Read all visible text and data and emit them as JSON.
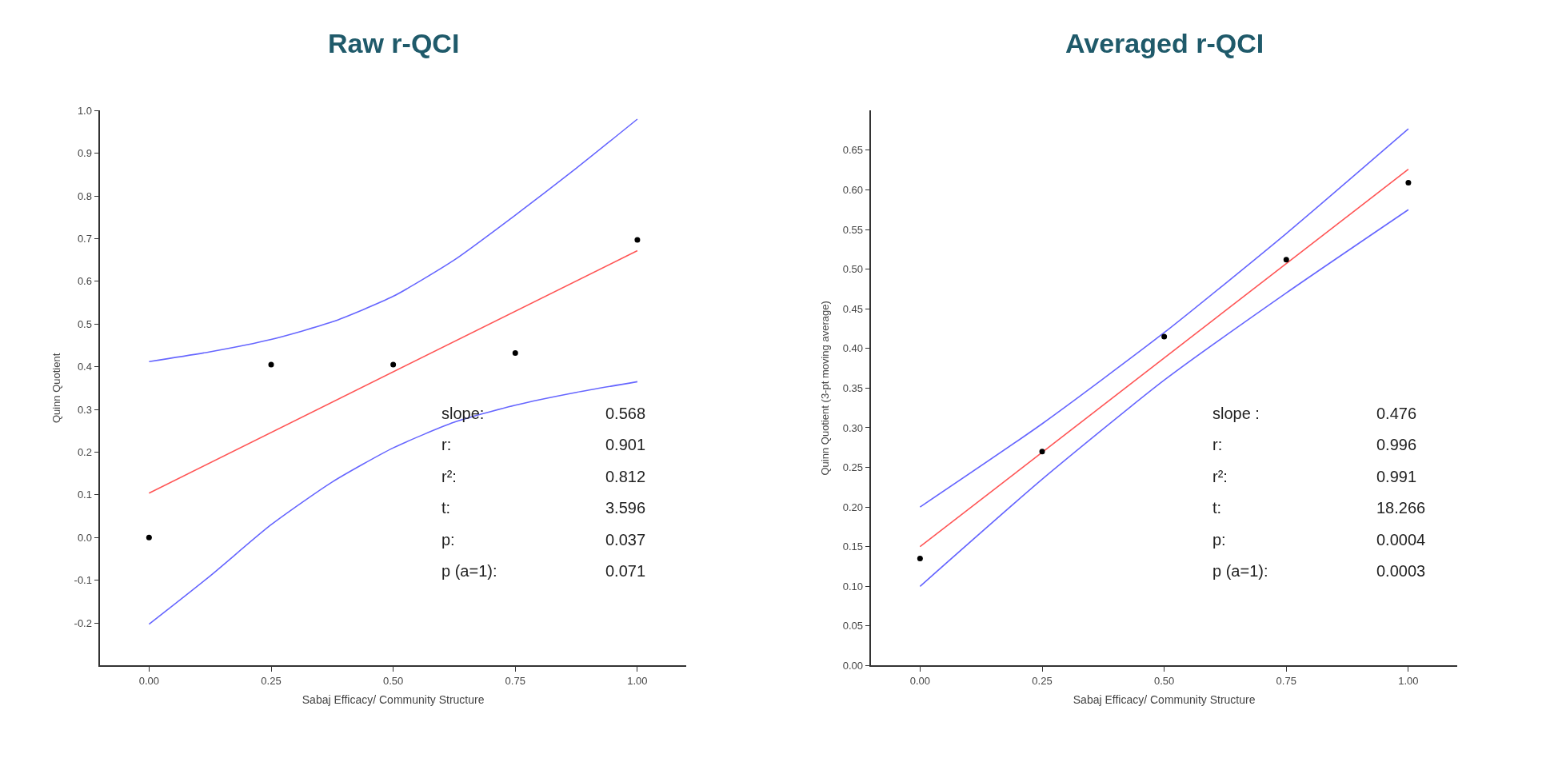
{
  "chart_data": [
    {
      "type": "scatter",
      "title": "Raw r-QCI",
      "xlabel": "Sabaj Efficacy/ Community Structure",
      "ylabel": "Quinn Quotient",
      "xlim": [
        -0.1,
        1.1
      ],
      "xticks": [
        {
          "value": 0,
          "label": "0.00"
        },
        {
          "value": 0.25,
          "label": "0.25"
        },
        {
          "value": 0.5,
          "label": "0.50"
        },
        {
          "value": 0.75,
          "label": "0.75"
        },
        {
          "value": 1,
          "label": "1.00"
        }
      ],
      "ylim": [
        -0.3,
        1.0
      ],
      "yticks": [
        {
          "value": -0.2,
          "label": "-0.2"
        },
        {
          "value": -0.1,
          "label": "-0.1"
        },
        {
          "value": 0,
          "label": "0.0"
        },
        0.1,
        0.2,
        0.3,
        0.4,
        0.5,
        0.6,
        0.7,
        0.8,
        0.9,
        {
          "value": 1,
          "label": "1.0"
        }
      ],
      "line_style": "solid",
      "series": [
        {
          "type": "line",
          "marker": "none",
          "color": "#6666ff",
          "x": [
            0,
            0.125,
            0.25,
            0.375,
            0.5,
            0.625,
            0.75,
            0.875,
            1
          ],
          "values": [
            0.412,
            0.435,
            0.464,
            0.505,
            0.565,
            0.65,
            0.755,
            0.865,
            0.98
          ]
        },
        {
          "type": "line",
          "marker": "none",
          "color": "#6666ff",
          "x": [
            0,
            0.125,
            0.25,
            0.375,
            0.5,
            0.625,
            0.75,
            0.875,
            1
          ],
          "values": [
            -0.203,
            -0.09,
            0.03,
            0.13,
            0.21,
            0.27,
            0.31,
            0.34,
            0.365
          ]
        },
        {
          "type": "line",
          "marker": "none",
          "color": "#ff5555",
          "x": [
            0,
            1
          ],
          "values": [
            0.104,
            0.672
          ]
        },
        {
          "marker": "circle",
          "color": "#000000",
          "x": [
            0,
            0.25,
            0.5,
            0.75,
            1
          ],
          "values": [
            0,
            0.405,
            0.405,
            0.432,
            0.697
          ]
        }
      ],
      "annotations": [
        "slope:",
        "0.568",
        "r:",
        "0.901",
        "r²:",
        "0.812",
        "t:",
        "3.596",
        "p:",
        "0.037",
        "p (a=1):",
        "0.071"
      ]
    },
    {
      "type": "scatter",
      "title": "Averaged r-QCI",
      "xlabel": "Sabaj Efficacy/ Community Structure",
      "ylabel": "Quinn Quotient (3-pt moving average)",
      "xlim": [
        -0.1,
        1.1
      ],
      "xticks": [
        {
          "value": 0,
          "label": "0.00"
        },
        {
          "value": 0.25,
          "label": "0.25"
        },
        {
          "value": 0.5,
          "label": "0.50"
        },
        {
          "value": 0.75,
          "label": "0.75"
        },
        {
          "value": 1,
          "label": "1.00"
        }
      ],
      "ylim": [
        0,
        0.7
      ],
      "yticks": [
        {
          "value": 0,
          "label": "0.00"
        },
        0.05,
        {
          "value": 0.1,
          "label": "0.10"
        },
        0.15,
        {
          "value": 0.2,
          "label": "0.20"
        },
        0.25,
        {
          "value": 0.3,
          "label": "0.30"
        },
        0.35,
        {
          "value": 0.4,
          "label": "0.40"
        },
        0.45,
        {
          "value": 0.5,
          "label": "0.50"
        },
        0.55,
        {
          "value": 0.6,
          "label": "0.60"
        },
        0.65
      ],
      "line_style": "solid",
      "series": [
        {
          "type": "line",
          "marker": "none",
          "color": "#6666ff",
          "x": [
            0,
            0.25,
            0.5,
            0.75,
            1
          ],
          "values": [
            0.2,
            0.305,
            0.42,
            0.545,
            0.677
          ]
        },
        {
          "type": "line",
          "marker": "none",
          "color": "#6666ff",
          "x": [
            0,
            0.25,
            0.5,
            0.75,
            1
          ],
          "values": [
            0.1,
            0.235,
            0.36,
            0.47,
            0.575
          ]
        },
        {
          "type": "line",
          "marker": "none",
          "color": "#ff5555",
          "x": [
            0,
            1
          ],
          "values": [
            0.15,
            0.626
          ]
        },
        {
          "marker": "circle",
          "color": "#000000",
          "x": [
            0,
            0.25,
            0.5,
            0.75,
            1
          ],
          "values": [
            0.135,
            0.27,
            0.415,
            0.512,
            0.609
          ]
        }
      ],
      "annotations": [
        "slope :",
        "0.476",
        "r:",
        "0.996",
        "r²:",
        "0.991",
        "t:",
        "18.266",
        "p:",
        "0.0004",
        "p (a=1):",
        "0.0003"
      ]
    }
  ]
}
